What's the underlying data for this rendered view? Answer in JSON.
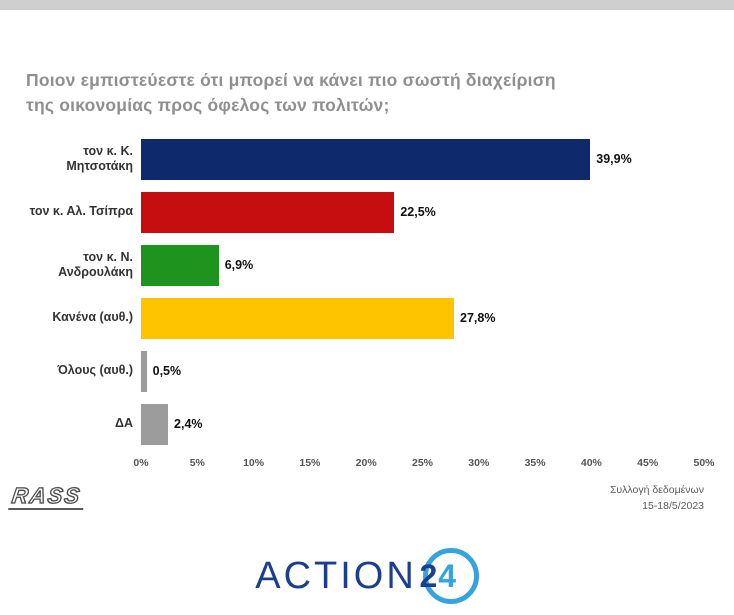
{
  "title": {
    "line1": "Ποιον εμπιστεύεστε ότι μπορεί να κάνει πιο σωστή διαχείριση",
    "line2": "της οικονομίας προς όφελος των πολιτών;"
  },
  "chart_data": {
    "type": "bar",
    "orientation": "horizontal",
    "title": "Ποιον εμπιστεύεστε ότι μπορεί να κάνει πιο σωστή διαχείριση της οικονομίας προς όφελος των πολιτών;",
    "categories": [
      "τον κ. Κ. Μητσοτάκη",
      "τον κ. Αλ. Τσίπρα",
      "τον κ. Ν. Ανδρουλάκη",
      "Κανένα (αυθ.)",
      "Όλους (αυθ.)",
      "ΔΑ"
    ],
    "values": [
      39.9,
      22.5,
      6.9,
      27.8,
      0.5,
      2.4
    ],
    "value_labels": [
      "39,9%",
      "22,5%",
      "6,9%",
      "27,8%",
      "0,5%",
      "2,4%"
    ],
    "bar_colors": [
      "#0e2a6d",
      "#c60d10",
      "#1e941e",
      "#fec400",
      "#9c9c9c",
      "#9c9c9c"
    ],
    "x_ticks": [
      "0%",
      "5%",
      "10%",
      "15%",
      "20%",
      "25%",
      "30%",
      "35%",
      "40%",
      "45%",
      "50%"
    ],
    "xlim": [
      0,
      50
    ],
    "grid": false,
    "legend": false
  },
  "footer": {
    "brand": "RASS",
    "note_line1": "Συλλογή δεδομένων",
    "note_line2": "15-18/5/2023"
  },
  "logo": {
    "action": "ACTION",
    "two": "2",
    "four": "4"
  },
  "colors": {
    "title_gray": "#8f8f8f",
    "action_navy": "#1c3e8e",
    "action_lightblue": "#35a3dd"
  }
}
